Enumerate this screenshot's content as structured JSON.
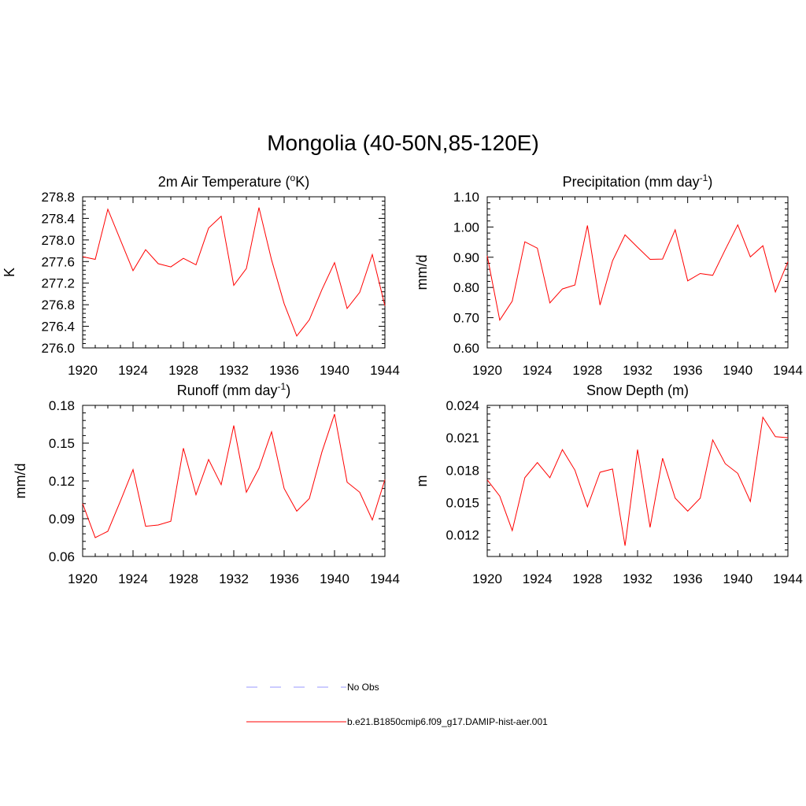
{
  "main_title": "Mongolia (40-50N,85-120E)",
  "colors": {
    "model_line": "#ff0000",
    "obs_line": "#9999ff",
    "axis": "#000000"
  },
  "legend": [
    {
      "label": "No Obs",
      "style": "dashed",
      "color": "#9999ff"
    },
    {
      "label": "b.e21.B1850cmip6.f09_g17.DAMIP-hist-aer.001",
      "style": "solid",
      "color": "#ff0000"
    }
  ],
  "chart_data": [
    {
      "type": "line",
      "title": "2m Air Temperature (",
      "title_sup": "o",
      "title_after": "K)",
      "ylabel": "K",
      "x": [
        1920,
        1921,
        1922,
        1923,
        1924,
        1925,
        1926,
        1927,
        1928,
        1929,
        1930,
        1931,
        1932,
        1933,
        1934,
        1935,
        1936,
        1937,
        1938,
        1939,
        1940,
        1941,
        1942,
        1943,
        1944
      ],
      "xlim": [
        1920,
        1944
      ],
      "xticks": [
        "1920",
        "1924",
        "1928",
        "1932",
        "1936",
        "1940",
        "1944"
      ],
      "ylim": [
        276.0,
        278.8
      ],
      "yticks": [
        "276.0",
        "276.4",
        "276.8",
        "277.2",
        "277.6",
        "278.0",
        "278.4",
        "278.8"
      ],
      "ytick_step": 0.4,
      "series": [
        {
          "values": [
            277.69,
            277.64,
            278.57,
            278.0,
            277.43,
            277.82,
            277.56,
            277.5,
            277.66,
            277.54,
            278.22,
            278.44,
            277.16,
            277.47,
            278.6,
            277.63,
            276.82,
            276.22,
            276.52,
            277.08,
            277.58,
            276.73,
            277.03,
            277.73,
            276.78
          ]
        }
      ]
    },
    {
      "type": "line",
      "title": "Precipitation (mm day",
      "title_sup": "-1",
      "title_after": ")",
      "ylabel": "mm/d",
      "x": [
        1920,
        1921,
        1922,
        1923,
        1924,
        1925,
        1926,
        1927,
        1928,
        1929,
        1930,
        1931,
        1932,
        1933,
        1934,
        1935,
        1936,
        1937,
        1938,
        1939,
        1940,
        1941,
        1942,
        1943,
        1944
      ],
      "xlim": [
        1920,
        1944
      ],
      "xticks": [
        "1920",
        "1924",
        "1928",
        "1932",
        "1936",
        "1940",
        "1944"
      ],
      "ylim": [
        0.6,
        1.1
      ],
      "yticks": [
        "0.60",
        "0.70",
        "0.80",
        "0.90",
        "1.00",
        "1.10"
      ],
      "ytick_step": 0.1,
      "series": [
        {
          "values": [
            0.905,
            0.692,
            0.755,
            0.951,
            0.93,
            0.749,
            0.795,
            0.808,
            1.005,
            0.742,
            0.888,
            0.974,
            0.933,
            0.893,
            0.894,
            0.991,
            0.822,
            0.846,
            0.84,
            0.925,
            1.007,
            0.901,
            0.938,
            0.785,
            0.885
          ]
        }
      ]
    },
    {
      "type": "line",
      "title": "Runoff (mm day",
      "title_sup": "-1",
      "title_after": ")",
      "ylabel": "mm/d",
      "x": [
        1920,
        1921,
        1922,
        1923,
        1924,
        1925,
        1926,
        1927,
        1928,
        1929,
        1930,
        1931,
        1932,
        1933,
        1934,
        1935,
        1936,
        1937,
        1938,
        1939,
        1940,
        1941,
        1942,
        1943,
        1944
      ],
      "xlim": [
        1920,
        1944
      ],
      "xticks": [
        "1920",
        "1924",
        "1928",
        "1932",
        "1936",
        "1940",
        "1944"
      ],
      "ylim": [
        0.06,
        0.18
      ],
      "yticks": [
        "0.06",
        "0.09",
        "0.12",
        "0.15",
        "0.18"
      ],
      "ytick_step": 0.03,
      "series": [
        {
          "values": [
            0.102,
            0.075,
            0.08,
            0.104,
            0.129,
            0.084,
            0.085,
            0.088,
            0.146,
            0.109,
            0.137,
            0.117,
            0.164,
            0.111,
            0.13,
            0.159,
            0.114,
            0.096,
            0.106,
            0.143,
            0.173,
            0.119,
            0.111,
            0.089,
            0.121
          ]
        }
      ]
    },
    {
      "type": "line",
      "title": "Snow Depth (m)",
      "title_sup": "",
      "title_after": "",
      "ylabel": "m",
      "x": [
        1920,
        1921,
        1922,
        1923,
        1924,
        1925,
        1926,
        1927,
        1928,
        1929,
        1930,
        1931,
        1932,
        1933,
        1934,
        1935,
        1936,
        1937,
        1938,
        1939,
        1940,
        1941,
        1942,
        1943,
        1944
      ],
      "xlim": [
        1920,
        1944
      ],
      "xticks": [
        "1920",
        "1924",
        "1928",
        "1932",
        "1936",
        "1940",
        "1944"
      ],
      "ylim": [
        0.01,
        0.024
      ],
      "yticks": [
        "0.012",
        "0.015",
        "0.018",
        "0.021",
        "0.024"
      ],
      "ytick_step": 0.003,
      "series": [
        {
          "values": [
            0.0171,
            0.0156,
            0.0124,
            0.0173,
            0.0187,
            0.0173,
            0.0199,
            0.018,
            0.0146,
            0.0178,
            0.0181,
            0.011,
            0.0199,
            0.0127,
            0.0191,
            0.0154,
            0.0142,
            0.0154,
            0.0208,
            0.0186,
            0.0177,
            0.0151,
            0.0229,
            0.0211,
            0.021
          ]
        }
      ]
    }
  ]
}
